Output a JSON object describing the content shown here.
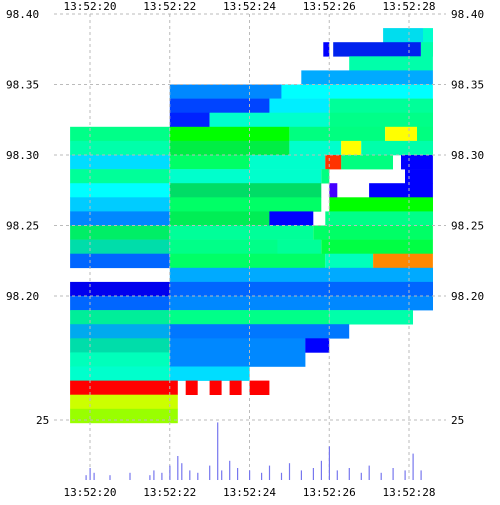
{
  "chart_data": [
    {
      "type": "heatmap",
      "title": "",
      "xlabel": "",
      "ylabel": "",
      "x_ticks": [
        "13:52:20",
        "13:52:22",
        "13:52:24",
        "13:52:26",
        "13:52:28"
      ],
      "y_ticks": [
        98.4,
        98.35,
        98.3,
        98.25,
        98.2
      ],
      "y_tick_labels": [
        "98.40",
        "98.35",
        "98.30",
        "98.25",
        "98.20"
      ],
      "ylim": [
        98.17,
        98.4
      ],
      "grid": true,
      "colorscale": [
        "#0000ff",
        "#00aaff",
        "#00ffff",
        "#00ff80",
        "#00ff00",
        "#ffff00",
        "#ff8000",
        "#ff0000"
      ],
      "rows": [
        {
          "price": 98.385,
          "cells": [
            {
              "t0": "13:52:27.35",
              "t1": "13:52:28.35",
              "c": "#00ddee"
            },
            {
              "t0": "13:52:28.35",
              "t1": "13:52:28.6",
              "c": "#00ffcc"
            }
          ]
        },
        {
          "price": 98.375,
          "cells": [
            {
              "t0": "13:52:25.85",
              "t1": "13:52:26",
              "c": "#0000ff"
            },
            {
              "t0": "13:52:26.1",
              "t1": "13:52:28.3",
              "c": "#0022ee"
            },
            {
              "t0": "13:52:28.3",
              "t1": "13:52:28.6",
              "c": "#00ffaa"
            }
          ]
        },
        {
          "price": 98.365,
          "cells": [
            {
              "t0": "13:52:26.5",
              "t1": "13:52:28.6",
              "c": "#00ffaa"
            }
          ]
        },
        {
          "price": 98.355,
          "cells": [
            {
              "t0": "13:52:25.3",
              "t1": "13:52:28.6",
              "c": "#00aaff"
            }
          ]
        },
        {
          "price": 98.345,
          "cells": [
            {
              "t0": "13:52:22",
              "t1": "13:52:24.8",
              "c": "#0088ff"
            },
            {
              "t0": "13:52:24.8",
              "t1": "13:52:28.6",
              "c": "#00ffff"
            }
          ]
        },
        {
          "price": 98.335,
          "cells": [
            {
              "t0": "13:52:22",
              "t1": "13:52:24.5",
              "c": "#0044ff"
            },
            {
              "t0": "13:52:24.5",
              "t1": "13:52:26",
              "c": "#00eeff"
            },
            {
              "t0": "13:52:26",
              "t1": "13:52:28.6",
              "c": "#00ff99"
            }
          ]
        },
        {
          "price": 98.325,
          "cells": [
            {
              "t0": "13:52:22",
              "t1": "13:52:23",
              "c": "#0022ff"
            },
            {
              "t0": "13:52:23",
              "t1": "13:52:26",
              "c": "#00ffcc"
            },
            {
              "t0": "13:52:26",
              "t1": "13:52:28.6",
              "c": "#00ff88"
            }
          ]
        },
        {
          "price": 98.315,
          "cells": [
            {
              "t0": "13:52:19.5",
              "t1": "13:52:22",
              "c": "#00ff88"
            },
            {
              "t0": "13:52:22",
              "t1": "13:52:25",
              "c": "#00ff00"
            },
            {
              "t0": "13:52:25",
              "t1": "13:52:27.4",
              "c": "#00ff80"
            },
            {
              "t0": "13:52:27.4",
              "t1": "13:52:28.2",
              "c": "#ffff00"
            },
            {
              "t0": "13:52:28.2",
              "t1": "13:52:28.6",
              "c": "#00ff80"
            }
          ]
        },
        {
          "price": 98.305,
          "cells": [
            {
              "t0": "13:52:19.5",
              "t1": "13:52:22",
              "c": "#00ffaa"
            },
            {
              "t0": "13:52:22",
              "t1": "13:52:25",
              "c": "#00ee44"
            },
            {
              "t0": "13:52:25",
              "t1": "13:52:26.3",
              "c": "#00ffcc"
            },
            {
              "t0": "13:52:26.3",
              "t1": "13:52:26.8",
              "c": "#ffff00"
            },
            {
              "t0": "13:52:26.8",
              "t1": "13:52:28.6",
              "c": "#00ffaa"
            }
          ]
        },
        {
          "price": 98.295,
          "cells": [
            {
              "t0": "13:52:19.5",
              "t1": "13:52:22",
              "c": "#00ddff"
            },
            {
              "t0": "13:52:22",
              "t1": "13:52:24",
              "c": "#00ff66"
            },
            {
              "t0": "13:52:24",
              "t1": "13:52:25.9",
              "c": "#00ffcc"
            },
            {
              "t0": "13:52:25.9",
              "t1": "13:52:26.3",
              "c": "#ff3300"
            },
            {
              "t0": "13:52:26.3",
              "t1": "13:52:27.6",
              "c": "#00ff80"
            },
            {
              "t0": "13:52:27.8",
              "t1": "13:52:28.6",
              "c": "#0000ff"
            }
          ]
        },
        {
          "price": 98.285,
          "cells": [
            {
              "t0": "13:52:19.5",
              "t1": "13:52:22",
              "c": "#00ff99"
            },
            {
              "t0": "13:52:22",
              "t1": "13:52:25.8",
              "c": "#00ffcc"
            },
            {
              "t0": "13:52:25.8",
              "t1": "13:52:26",
              "c": "#00ff80"
            },
            {
              "t0": "13:52:27.9",
              "t1": "13:52:28.6",
              "c": "#0000ff"
            }
          ]
        },
        {
          "price": 98.275,
          "cells": [
            {
              "t0": "13:52:19.5",
              "t1": "13:52:22",
              "c": "#00ffff"
            },
            {
              "t0": "13:52:22",
              "t1": "13:52:25.8",
              "c": "#00dd66"
            },
            {
              "t0": "13:52:26",
              "t1": "13:52:26.2",
              "c": "#4400ff"
            },
            {
              "t0": "13:52:27",
              "t1": "13:52:28.6",
              "c": "#0000ff"
            }
          ]
        },
        {
          "price": 98.265,
          "cells": [
            {
              "t0": "13:52:19.5",
              "t1": "13:52:22",
              "c": "#00ccff"
            },
            {
              "t0": "13:52:22",
              "t1": "13:52:25.8",
              "c": "#00ff66"
            },
            {
              "t0": "13:52:26",
              "t1": "13:52:28.6",
              "c": "#00ff00"
            }
          ]
        },
        {
          "price": 98.255,
          "cells": [
            {
              "t0": "13:52:19.5",
              "t1": "13:52:22",
              "c": "#0088ff"
            },
            {
              "t0": "13:52:22",
              "t1": "13:52:24.5",
              "c": "#00ee55"
            },
            {
              "t0": "13:52:24.5",
              "t1": "13:52:25.6",
              "c": "#0000ff"
            },
            {
              "t0": "13:52:25.9",
              "t1": "13:52:28.6",
              "c": "#00ff88"
            }
          ]
        },
        {
          "price": 98.245,
          "cells": [
            {
              "t0": "13:52:19.5",
              "t1": "13:52:22",
              "c": "#00ee66"
            },
            {
              "t0": "13:52:22",
              "t1": "13:52:25.6",
              "c": "#00ff99"
            },
            {
              "t0": "13:52:25.6",
              "t1": "13:52:28.6",
              "c": "#00ff66"
            }
          ]
        },
        {
          "price": 98.235,
          "cells": [
            {
              "t0": "13:52:19.5",
              "t1": "13:52:22",
              "c": "#00ddaa"
            },
            {
              "t0": "13:52:22",
              "t1": "13:52:24.7",
              "c": "#00ff88"
            },
            {
              "t0": "13:52:24.7",
              "t1": "13:52:25.8",
              "c": "#00ff99"
            },
            {
              "t0": "13:52:25.8",
              "t1": "13:52:28.6",
              "c": "#00ff44"
            }
          ]
        },
        {
          "price": 98.225,
          "cells": [
            {
              "t0": "13:52:19.5",
              "t1": "13:52:22",
              "c": "#0066ff"
            },
            {
              "t0": "13:52:22",
              "t1": "13:52:25.9",
              "c": "#00ff66"
            },
            {
              "t0": "13:52:25.9",
              "t1": "13:52:27.1",
              "c": "#00ffbb"
            },
            {
              "t0": "13:52:27.1",
              "t1": "13:52:28.6",
              "c": "#ff8800"
            }
          ]
        },
        {
          "price": 98.215,
          "cells": [
            {
              "t0": "13:52:22",
              "t1": "13:52:28.6",
              "c": "#00aaff"
            }
          ]
        },
        {
          "price": 98.205,
          "cells": [
            {
              "t0": "13:52:19.5",
              "t1": "13:52:22",
              "c": "#0000ee"
            },
            {
              "t0": "13:52:22",
              "t1": "13:52:28.6",
              "c": "#0066ff"
            }
          ]
        },
        {
          "price": 98.195,
          "cells": [
            {
              "t0": "13:52:19.5",
              "t1": "13:52:22",
              "c": "#0066ff"
            },
            {
              "t0": "13:52:22",
              "t1": "13:52:28.6",
              "c": "#0088ff"
            }
          ]
        },
        {
          "price": 98.185,
          "cells": [
            {
              "t0": "13:52:19.5",
              "t1": "13:52:22",
              "c": "#00ee99"
            },
            {
              "t0": "13:52:22",
              "t1": "13:52:26",
              "c": "#00ff88"
            },
            {
              "t0": "13:52:26",
              "t1": "13:52:28.1",
              "c": "#00ffaa"
            }
          ]
        },
        {
          "price": 98.175,
          "cells": [
            {
              "t0": "13:52:19.5",
              "t1": "13:52:22",
              "c": "#00aaee"
            },
            {
              "t0": "13:52:22",
              "t1": "13:52:26.5",
              "c": "#0077ff"
            }
          ]
        },
        {
          "price": 98.165,
          "cells": [
            {
              "t0": "13:52:19.5",
              "t1": "13:52:22",
              "c": "#00ddaa"
            },
            {
              "t0": "13:52:22",
              "t1": "13:52:25.4",
              "c": "#0088ff"
            },
            {
              "t0": "13:52:25.4",
              "t1": "13:52:26",
              "c": "#0000ff"
            }
          ]
        },
        {
          "price": 98.155,
          "cells": [
            {
              "t0": "13:52:19.5",
              "t1": "13:52:22",
              "c": "#00ffbb"
            },
            {
              "t0": "13:52:22",
              "t1": "13:52:25.4",
              "c": "#0088ff"
            }
          ]
        },
        {
          "price": 98.145,
          "cells": [
            {
              "t0": "13:52:19.5",
              "t1": "13:52:22",
              "c": "#00ffcc"
            },
            {
              "t0": "13:52:22",
              "t1": "13:52:24",
              "c": "#00ddff"
            }
          ]
        },
        {
          "price": 98.135,
          "cells": [
            {
              "t0": "13:52:19.5",
              "t1": "13:52:22.2",
              "c": "#ff0000"
            },
            {
              "t0": "13:52:22.4",
              "t1": "13:52:22.7",
              "c": "#ff0000"
            },
            {
              "t0": "13:52:23",
              "t1": "13:52:23.3",
              "c": "#ff0000"
            },
            {
              "t0": "13:52:23.5",
              "t1": "13:52:23.8",
              "c": "#ff0000"
            },
            {
              "t0": "13:52:24",
              "t1": "13:52:24.5",
              "c": "#ff0000"
            }
          ]
        },
        {
          "price": 98.125,
          "cells": [
            {
              "t0": "13:52:19.5",
              "t1": "13:52:22.2",
              "c": "#ccff00"
            }
          ]
        },
        {
          "price": 98.115,
          "cells": [
            {
              "t0": "13:52:19.5",
              "t1": "13:52:22.2",
              "c": "#99ff00"
            }
          ]
        }
      ]
    },
    {
      "type": "bar",
      "title": "",
      "xlabel": "",
      "ylabel": "",
      "y_tick_labels": [
        "25"
      ],
      "y_ticks": [
        25
      ],
      "ylim": [
        0,
        25
      ],
      "color": "#7777ee",
      "x": [
        "13:52:19.9",
        "13:52:20.0",
        "13:52:20.1",
        "13:52:20.5",
        "13:52:21.0",
        "13:52:21.5",
        "13:52:21.6",
        "13:52:21.8",
        "13:52:22.0",
        "13:52:22.2",
        "13:52:22.3",
        "13:52:22.5",
        "13:52:22.7",
        "13:52:23.0",
        "13:52:23.2",
        "13:52:23.3",
        "13:52:23.5",
        "13:52:23.7",
        "13:52:24.0",
        "13:52:24.3",
        "13:52:24.5",
        "13:52:24.8",
        "13:52:25.0",
        "13:52:25.3",
        "13:52:25.6",
        "13:52:25.8",
        "13:52:26.0",
        "13:52:26.2",
        "13:52:26.5",
        "13:52:26.8",
        "13:52:27.0",
        "13:52:27.3",
        "13:52:27.6",
        "13:52:27.9",
        "13:52:28.1",
        "13:52:28.3"
      ],
      "values": [
        2,
        5,
        3,
        2,
        3,
        2,
        4,
        3,
        6,
        10,
        7,
        4,
        3,
        6,
        24,
        4,
        8,
        5,
        4,
        3,
        6,
        3,
        7,
        4,
        5,
        8,
        14,
        4,
        5,
        3,
        6,
        3,
        5,
        4,
        11,
        4
      ]
    }
  ]
}
